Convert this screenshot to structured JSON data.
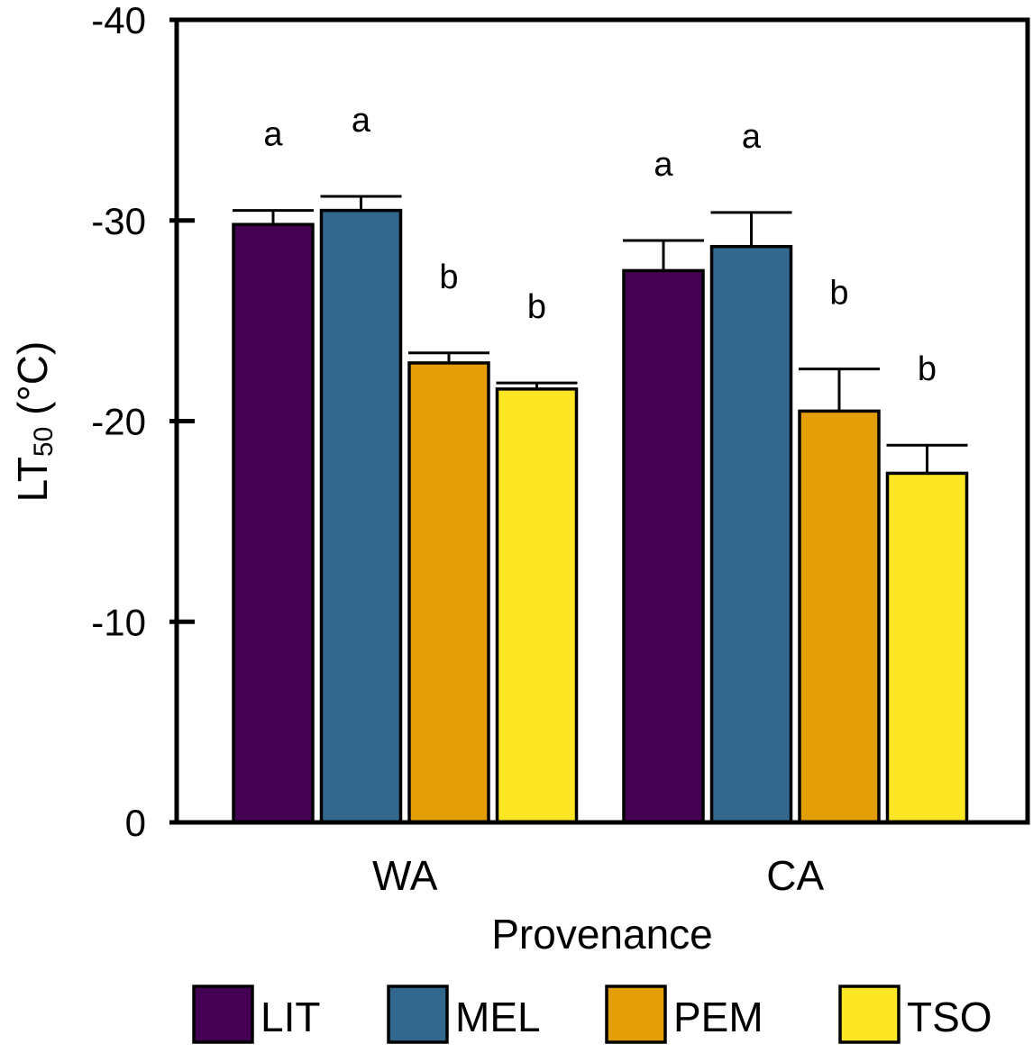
{
  "chart_data": {
    "type": "bar",
    "title": "",
    "xlabel": "Provenance",
    "ylabel": {
      "main": "LT",
      "subscript": "50",
      "unit": " (°C)"
    },
    "categories": [
      "WA",
      "CA"
    ],
    "ylim": [
      0,
      -40
    ],
    "yticks": [
      0,
      -10,
      -20,
      -30,
      -40
    ],
    "ytick_labels": [
      "0",
      "-10",
      "-20",
      "-30",
      "-40"
    ],
    "grid": false,
    "legend_position": "bottom",
    "series": [
      {
        "name": "LIT",
        "color": "#440154",
        "values": [
          -29.8,
          -27.5
        ],
        "errors": [
          0.7,
          1.5
        ],
        "significance": [
          "a",
          "a"
        ]
      },
      {
        "name": "MEL",
        "color": "#33688e",
        "values": [
          -30.5,
          -28.7
        ],
        "errors": [
          0.7,
          1.7
        ],
        "significance": [
          "a",
          "a"
        ]
      },
      {
        "name": "PEM",
        "color": "#e39e05",
        "values": [
          -22.9,
          -20.5
        ],
        "errors": [
          0.5,
          2.1
        ],
        "significance": [
          "b",
          "b"
        ]
      },
      {
        "name": "TSO",
        "color": "#fde725",
        "values": [
          -21.6,
          -17.4
        ],
        "errors": [
          0.3,
          1.4
        ],
        "significance": [
          "b",
          "b"
        ]
      }
    ]
  }
}
